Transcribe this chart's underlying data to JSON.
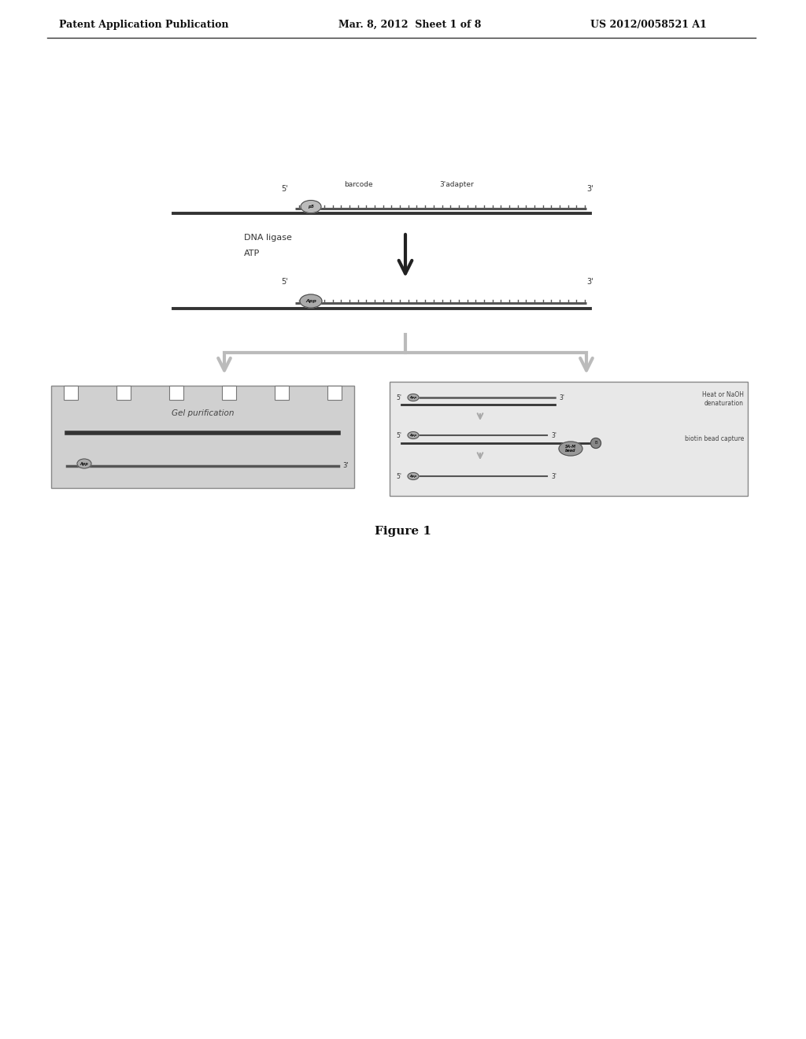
{
  "bg_color": "#ffffff",
  "header_left": "Patent Application Publication",
  "header_mid": "Mar. 8, 2012  Sheet 1 of 8",
  "header_right": "US 2012/0058521 A1",
  "figure_label": "Figure 1",
  "dna_color": "#444444",
  "adapter_color": "#888888",
  "gel_bg": "#cccccc",
  "box_bg": "#e8e8e8",
  "arrow_color": "#888888",
  "dark_arrow_color": "#333333"
}
